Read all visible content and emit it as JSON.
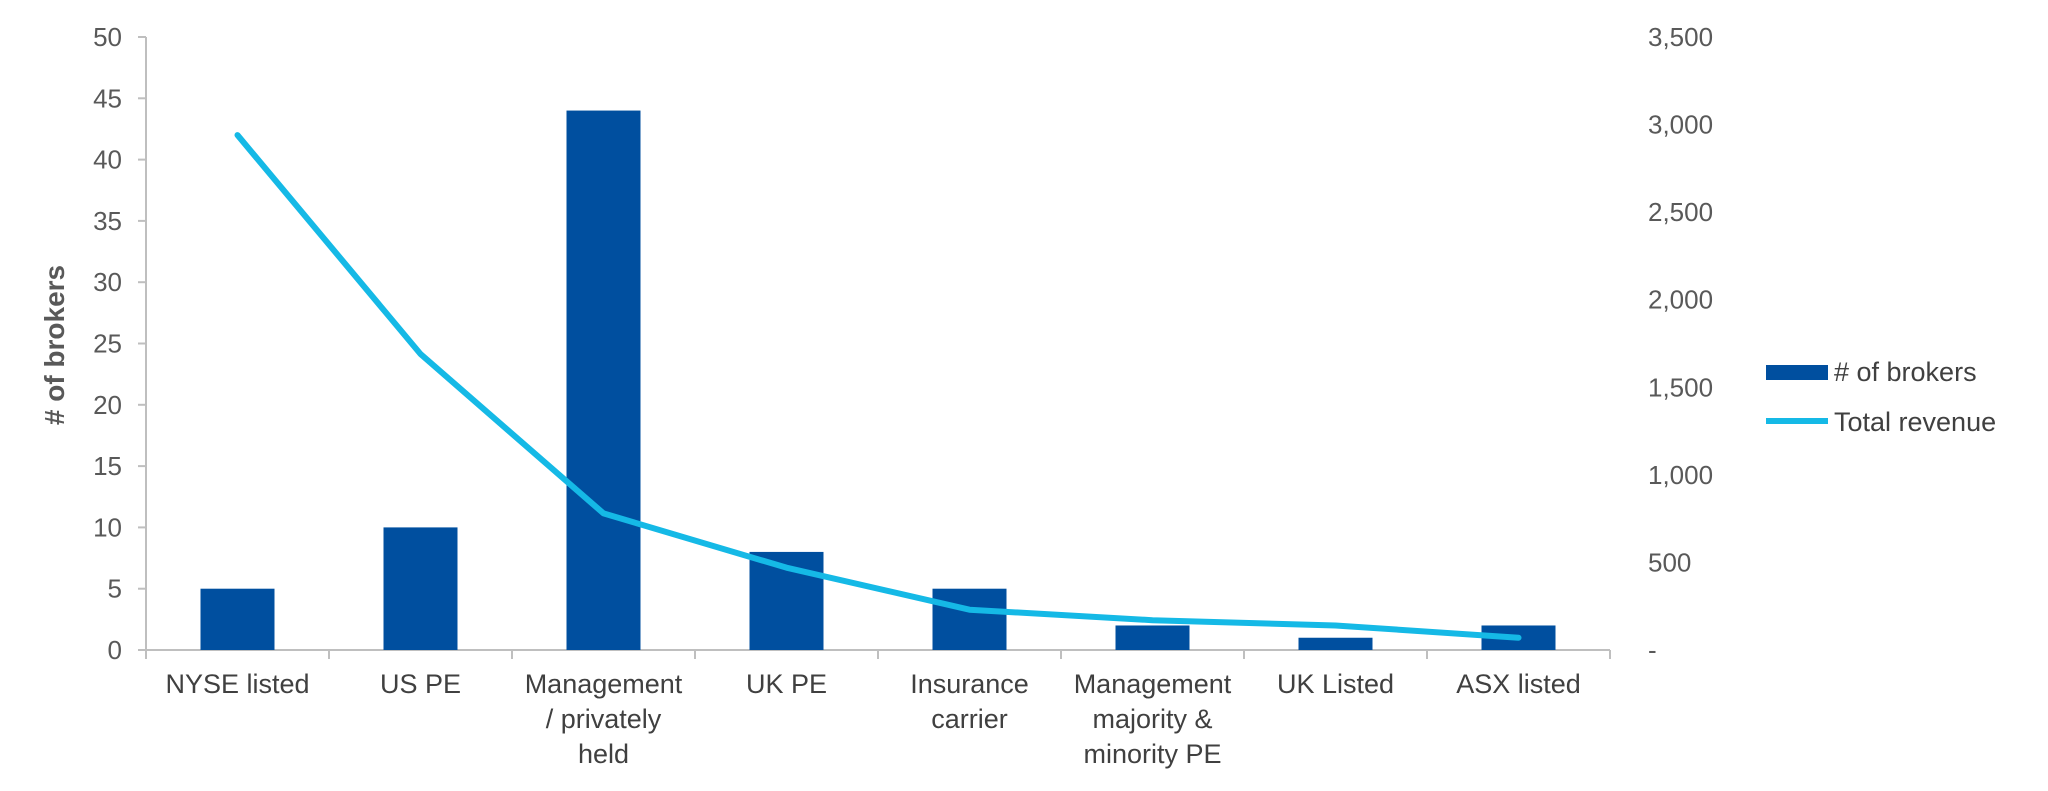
{
  "chart_data": {
    "type": "bar",
    "categories": [
      [
        "NYSE listed"
      ],
      [
        "US PE"
      ],
      [
        "Management",
        "/ privately",
        "held"
      ],
      [
        "UK PE"
      ],
      [
        "Insurance",
        "carrier"
      ],
      [
        "Management",
        "majority &",
        "minority PE"
      ],
      [
        "UK Listed"
      ],
      [
        "ASX listed"
      ]
    ],
    "series": [
      {
        "name": "# of brokers",
        "type": "bar",
        "axis": "left",
        "color": "#004f9f",
        "values": [
          5,
          10,
          44,
          8,
          5,
          2,
          1,
          2
        ]
      },
      {
        "name": "Total revenue",
        "type": "line",
        "axis": "right",
        "color": "#15b9e6",
        "values": [
          2940,
          1690,
          780,
          470,
          230,
          170,
          140,
          70
        ]
      }
    ],
    "y_left": {
      "label": "# of brokers",
      "range": [
        0,
        50
      ],
      "ticks": [
        "0",
        "5",
        "10",
        "15",
        "20",
        "25",
        "30",
        "35",
        "40",
        "45",
        "50"
      ]
    },
    "y_right": {
      "range": [
        0,
        3500
      ],
      "ticks": [
        "-",
        "500",
        "1,000",
        "1,500",
        "2,000",
        "2,500",
        "3,000",
        "3,500"
      ]
    },
    "grid": false,
    "legend_position": "right"
  }
}
